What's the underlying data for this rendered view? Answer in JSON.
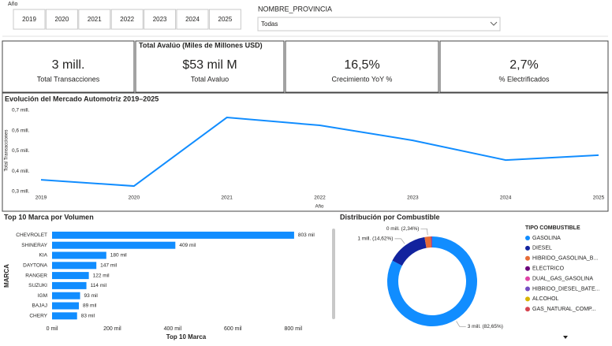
{
  "filters": {
    "label": "Año",
    "years": [
      "2019",
      "2020",
      "2021",
      "2022",
      "2023",
      "2024",
      "2025"
    ]
  },
  "province": {
    "label": "NOMBRE_PROVINCIA",
    "value": "Todas"
  },
  "kpi_header": "Total Avalúo (Miles de Millones USD)",
  "kpis": [
    {
      "value": "3 mill.",
      "label": "Total Transacciones"
    },
    {
      "value": "$53 mil M",
      "label": "Total Avaluo"
    },
    {
      "value": "16,5%",
      "label": "Crecimiento YoY %"
    },
    {
      "value": "2,7%",
      "label": "% Electrificados"
    }
  ],
  "chart_data": [
    {
      "type": "line",
      "title": "Evolución del Mercado Automotriz 2019–2025",
      "x_label": "Año",
      "y_label": "Total Transacciones",
      "x": [
        2019,
        2020,
        2021,
        2022,
        2023,
        2024,
        2025
      ],
      "values": [
        0.358,
        0.327,
        0.665,
        0.626,
        0.552,
        0.455,
        0.479
      ],
      "color": "#118DFF",
      "xlim": [
        2019,
        2025
      ],
      "xticks": [
        2019,
        2020,
        2021,
        2022,
        2023,
        2024,
        2025
      ],
      "ylim": [
        0.3,
        0.7
      ],
      "yticks": [
        {
          "value": 0.3,
          "label": "0,3 mill."
        },
        {
          "value": 0.4,
          "label": "0,4 mill."
        },
        {
          "value": 0.5,
          "label": "0,5 mill."
        },
        {
          "value": 0.6,
          "label": "0,6 mill."
        },
        {
          "value": 0.7,
          "label": "0,7 mill."
        }
      ]
    },
    {
      "type": "hbar",
      "title": "Top 10 Marca por Volumen",
      "x_label": "Top 10 Marca",
      "y_label": "MARCA",
      "categories": [
        "CHEVROLET",
        "SHINERAY",
        "KIA",
        "DAYTONA",
        "RANGER",
        "SUZUKI",
        "IGM",
        "BAJAJ",
        "CHERY"
      ],
      "values": [
        803,
        409,
        180,
        147,
        122,
        114,
        93,
        89,
        83
      ],
      "value_labels": [
        "803 mil",
        "409 mil",
        "180 mil",
        "147 mil",
        "122 mil",
        "114 mil",
        "93 mil",
        "89 mil",
        "83 mil"
      ],
      "color": "#118DFF",
      "xlim": [
        0,
        900
      ],
      "xticks": [
        {
          "value": 0,
          "label": "0 mil"
        },
        {
          "value": 200,
          "label": "200 mil"
        },
        {
          "value": 400,
          "label": "400 mil"
        },
        {
          "value": 600,
          "label": "600 mil"
        },
        {
          "value": 800,
          "label": "800 mil"
        }
      ]
    },
    {
      "type": "donut",
      "title": "Distribución por Combustible",
      "legend_title": "TIPO COMBUSTIBLE",
      "categories": [
        "GASOLINA",
        "DIESEL",
        "HIBRIDO_GASOLINA_B...",
        "ELECTRICO",
        "DUAL_GAS_GASOLINA",
        "HIBRIDO_DIESEL_BATE...",
        "ALCOHOL",
        "GAS_NATURAL_COMP..."
      ],
      "values": [
        82.65,
        14.62,
        2.34,
        0.25,
        0.08,
        0.03,
        0.02,
        0.01
      ],
      "value_labels": [
        "3 mill. (82,65%)",
        "1 mill. (14,62%)",
        "0 mill. (2,34%)",
        null,
        null,
        null,
        null,
        null
      ],
      "colors": [
        "#118DFF",
        "#12239E",
        "#E66C37",
        "#6B007B",
        "#E044A7",
        "#744EC2",
        "#D9B300",
        "#D64550"
      ]
    }
  ]
}
